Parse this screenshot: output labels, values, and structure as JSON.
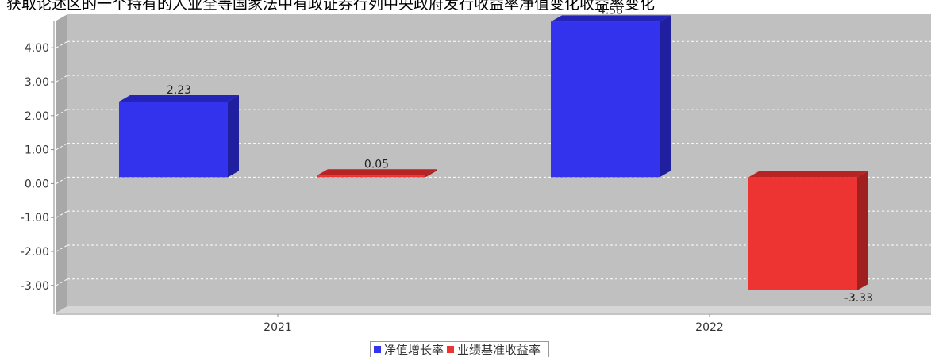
{
  "chart_data": {
    "type": "bar",
    "title": "获取论述区的一个持有的人业全等国家法中有政证券行列中央政府发行收益率净值变化收益率变化",
    "categories": [
      "2021",
      "2022"
    ],
    "series": [
      {
        "name": "净值增长率",
        "color": "#3333ee",
        "side_color": "#1f1fa0",
        "top_color": "#2424b8",
        "values": [
          2.23,
          4.58
        ]
      },
      {
        "name": "业绩基准收益率",
        "color": "#ee3333",
        "side_color": "#a01f1f",
        "top_color": "#b82424",
        "values": [
          0.05,
          -3.33
        ]
      }
    ],
    "value_labels": [
      [
        "2.23",
        "4.58"
      ],
      [
        "0.05",
        "-3.33"
      ]
    ],
    "ylim": [
      -3.8,
      4.8
    ],
    "yticks": [
      4.0,
      3.0,
      2.0,
      1.0,
      0.0,
      -1.0,
      -2.0,
      -3.0
    ],
    "ytick_labels": [
      "4.00",
      "3.00",
      "2.00",
      "1.00",
      "0.00",
      "-1.00",
      "-2.00",
      "-3.00"
    ],
    "xlabel": "",
    "ylabel": "",
    "grid": true,
    "legend_position": "bottom",
    "plot_background": "#c0c0c0"
  }
}
